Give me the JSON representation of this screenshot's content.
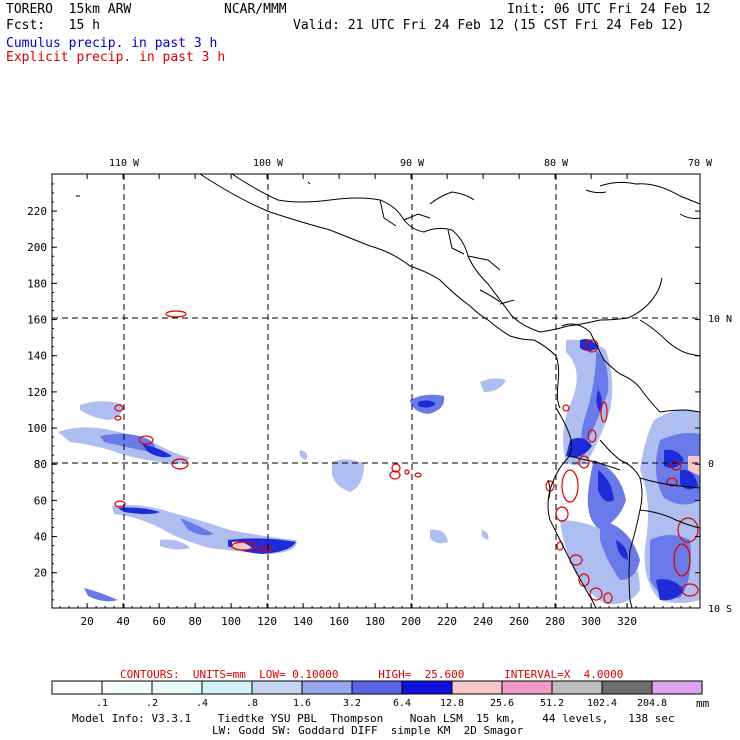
{
  "header": {
    "model": "TORERO  15km ARW",
    "org": "NCAR/MMM",
    "init": "Init: 06 UTC Fri 24 Feb 12",
    "fcst": "Fcst:   15 h",
    "valid": "Valid: 21 UTC Fri 24 Feb 12 (15 CST Fri 24 Feb 12)",
    "field1": "Cumulus precip. in past 3 h",
    "field2": "Explicit precip. in past 3 h"
  },
  "map": {
    "x_ticks": [
      "20",
      "40",
      "60",
      "80",
      "100",
      "120",
      "140",
      "160",
      "180",
      "200",
      "220",
      "240",
      "260",
      "280",
      "300",
      "320"
    ],
    "y_ticks": [
      "20",
      "40",
      "60",
      "80",
      "100",
      "120",
      "140",
      "160",
      "180",
      "200",
      "220"
    ],
    "lon_labels": [
      "110 W",
      "100 W",
      "90 W",
      "80 W",
      "70 W"
    ],
    "lat_labels": [
      "10 N",
      "0",
      "10 S"
    ],
    "colors": {
      "cumulus_light": "#aebef0",
      "cumulus_mid": "#6a7ae8",
      "cumulus_strong": "#1e2cd8",
      "explicit_contour": "#e00000"
    }
  },
  "footer": {
    "contours": "CONTOURS:  UNITS=mm  LOW= 0.10000      HIGH=  25.600      INTERVAL=X  4.0000",
    "colorbar_labels": [
      ".1",
      ".2",
      ".4",
      ".8",
      "1.6",
      "3.2",
      "6.4",
      "12.8",
      "25.6",
      "51.2",
      "102.4",
      "204.8"
    ],
    "colorbar_colors": [
      "#ffffff",
      "#f5fffe",
      "#e6fbfa",
      "#d2f2f7",
      "#c7d5f2",
      "#9aa6ec",
      "#5c64e6",
      "#1010dc",
      "#f6c8c8",
      "#f29ac6",
      "#bdbdbd",
      "#6e6e6e",
      "#dca4f0"
    ],
    "units": "mm",
    "model_info": "Model Info: V3.3.1    Tiedtke YSU PBL  Thompson    Noah LSM  15 km,    44 levels,   138 sec",
    "model_info2": "LW: Godd SW: Goddard DIFF  simple KM  2D Smagor"
  }
}
